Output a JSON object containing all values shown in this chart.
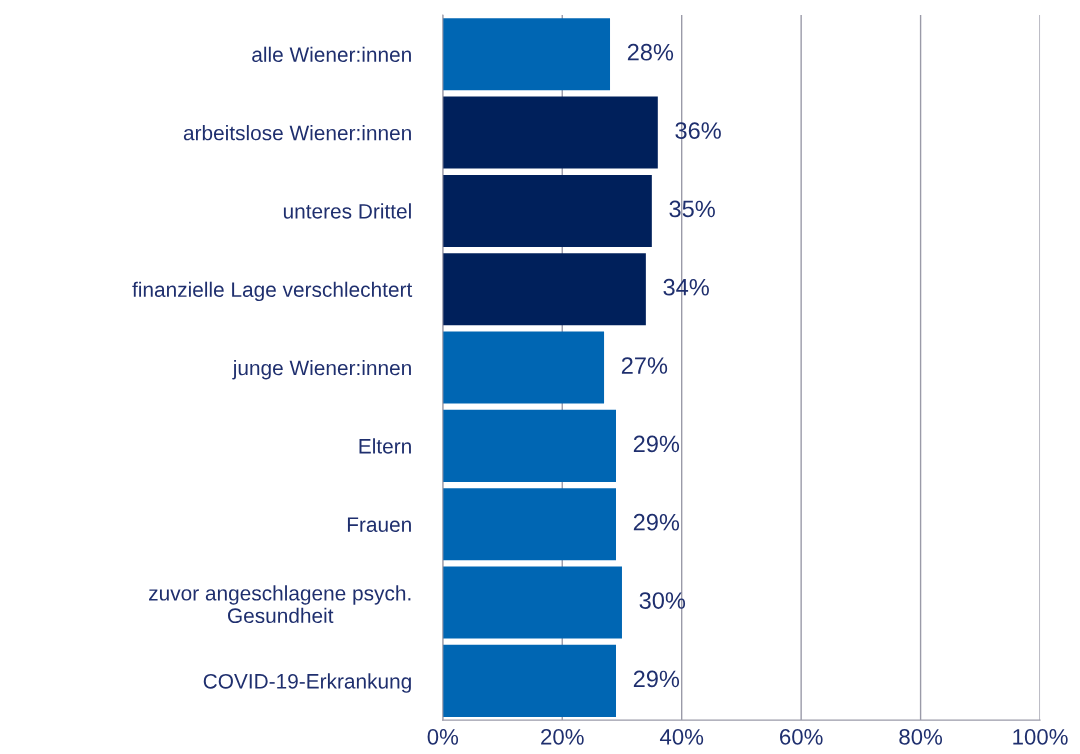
{
  "chart_data": {
    "type": "bar",
    "orientation": "horizontal",
    "categories": [
      "alle Wiener:innen",
      "arbeitslose Wiener:innen",
      "unteres Drittel",
      "finanzielle Lage verschlechtert",
      "junge Wiener:innen",
      "Eltern",
      "Frauen",
      "zuvor angeschlagene psych.\nGesundheit",
      "COVID-19-Erkrankung"
    ],
    "values": [
      28,
      36,
      35,
      34,
      27,
      29,
      29,
      30,
      29
    ],
    "colors": [
      "#0066b3",
      "#00205b",
      "#00205b",
      "#00205b",
      "#0066b3",
      "#0066b3",
      "#0066b3",
      "#0066b3",
      "#0066b3"
    ],
    "value_labels": [
      "28%",
      "36%",
      "35%",
      "34%",
      "27%",
      "29%",
      "29%",
      "30%",
      "29%"
    ],
    "xlim": [
      0,
      100
    ],
    "xticks": [
      {
        "value": 0,
        "label": "0%"
      },
      {
        "value": 20,
        "label": "20%"
      },
      {
        "value": 40,
        "label": "40%"
      },
      {
        "value": 60,
        "label": "60%"
      },
      {
        "value": 80,
        "label": "80%"
      },
      {
        "value": 100,
        "label": "100%"
      }
    ],
    "grid": "x"
  }
}
